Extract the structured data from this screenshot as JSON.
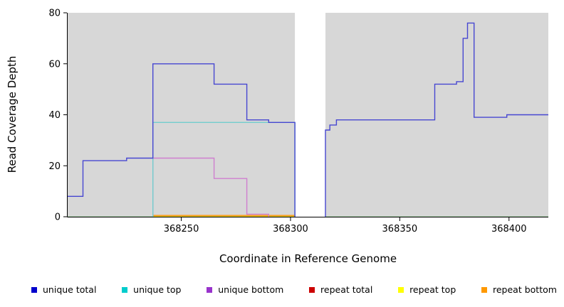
{
  "chart_data": {
    "type": "line",
    "subtype": "step-coverage",
    "title": "",
    "xlabel": "Coordinate in Reference Genome",
    "ylabel": "Read Coverage Depth",
    "xlim": [
      368198,
      368418
    ],
    "ylim": [
      0,
      80
    ],
    "x_ticks": [
      368250,
      368300,
      368350,
      368400
    ],
    "y_ticks": [
      0,
      20,
      40,
      60,
      80
    ],
    "grid": false,
    "plot_bg": "#d7d7d7",
    "baseline_color": "#7fbf7f",
    "axis_color": "#000000",
    "gap_x": [
      368302,
      368316
    ],
    "series": [
      {
        "name": "repeat total",
        "line_color": "#cc0000",
        "segments": [
          {
            "from_zero": false,
            "to_zero": false,
            "points": [
              [
                368237,
                0
              ],
              [
                368302,
                0
              ]
            ]
          }
        ]
      },
      {
        "name": "repeat top",
        "line_color": "#e6e600",
        "segments": [
          {
            "from_zero": false,
            "to_zero": false,
            "points": [
              [
                368237,
                0
              ],
              [
                368302,
                0
              ]
            ]
          }
        ]
      },
      {
        "name": "repeat bottom",
        "line_color": "#ff9100",
        "segments": [
          {
            "from_zero": false,
            "to_zero": false,
            "points": [
              [
                368237,
                0.5
              ],
              [
                368302,
                0.5
              ]
            ]
          }
        ]
      },
      {
        "name": "unique bottom",
        "line_color": "#cf7fcf",
        "segments": [
          {
            "from_zero": true,
            "to_zero": true,
            "points": [
              [
                368237,
                23
              ],
              [
                368265,
                15
              ],
              [
                368280,
                1
              ],
              [
                368290,
                1
              ]
            ]
          }
        ]
      },
      {
        "name": "unique top",
        "line_color": "#72cdcd",
        "segments": [
          {
            "from_zero": true,
            "to_zero": true,
            "points": [
              [
                368237,
                37
              ],
              [
                368302,
                37
              ]
            ]
          }
        ]
      },
      {
        "name": "unique total",
        "line_color": "#4747d1",
        "segments": [
          {
            "from_zero": false,
            "to_zero": true,
            "points": [
              [
                368198,
                8
              ],
              [
                368205,
                22
              ],
              [
                368225,
                23
              ],
              [
                368237,
                60
              ],
              [
                368265,
                52
              ],
              [
                368280,
                38
              ],
              [
                368290,
                37
              ],
              [
                368302,
                37
              ]
            ]
          },
          {
            "from_zero": true,
            "to_zero": false,
            "points": [
              [
                368316,
                34
              ],
              [
                368318,
                36
              ],
              [
                368321,
                38
              ],
              [
                368366,
                52
              ],
              [
                368376,
                53
              ],
              [
                368379,
                70
              ],
              [
                368381,
                76
              ],
              [
                368384,
                39
              ],
              [
                368399,
                40
              ],
              [
                368418,
                40
              ]
            ]
          }
        ]
      }
    ]
  },
  "legend": {
    "items": [
      {
        "label": "unique total",
        "swatch": "#0000cc"
      },
      {
        "label": "unique top",
        "swatch": "#00cccc"
      },
      {
        "label": "unique bottom",
        "swatch": "#9933cc"
      },
      {
        "label": "repeat total",
        "swatch": "#cc0000"
      },
      {
        "label": "repeat top",
        "swatch": "#ffff00"
      },
      {
        "label": "repeat bottom",
        "swatch": "#ff9900"
      }
    ]
  }
}
